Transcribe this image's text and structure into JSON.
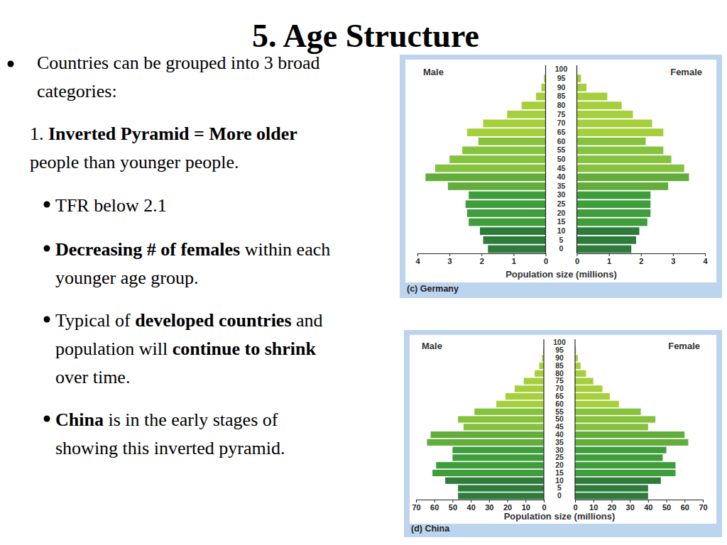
{
  "slide": {
    "title": "5. Age Structure",
    "intro": {
      "lines": [
        [
          {
            "text": "Countries can be grouped into 3 broad"
          }
        ],
        [
          {
            "text": "categories:"
          }
        ]
      ]
    },
    "category": {
      "lines": [
        [
          {
            "text": "1. "
          },
          {
            "text": "Inverted Pyramid = More older",
            "bold": true
          }
        ],
        [
          {
            "text": "people than younger people."
          }
        ]
      ]
    },
    "points": [
      {
        "lines": [
          [
            {
              "text": "TFR below 2.1"
            }
          ]
        ]
      },
      {
        "lines": [
          [
            {
              "text": "Decreasing # of females",
              "bold": true
            },
            {
              "text": " within each"
            }
          ],
          [
            {
              "text": "younger age group."
            }
          ]
        ]
      },
      {
        "lines": [
          [
            {
              "text": "Typical of "
            },
            {
              "text": "developed countries",
              "bold": true
            },
            {
              "text": " and"
            }
          ],
          [
            {
              "text": "population will "
            },
            {
              "text": "continue to shrink",
              "bold": true
            }
          ],
          [
            {
              "text": "over time."
            }
          ]
        ]
      },
      {
        "lines": [
          [
            {
              "text": "China",
              "bold": true
            },
            {
              "text": " is in the early stages of"
            }
          ],
          [
            {
              "text": "showing this inverted pyramid."
            }
          ]
        ]
      }
    ]
  },
  "chart_data": [
    {
      "type": "bar",
      "orientation": "horizontal",
      "title": "(c) Germany",
      "xlabel": "Population size (millions)",
      "categories": [
        "0",
        "5",
        "10",
        "15",
        "20",
        "25",
        "30",
        "35",
        "40",
        "45",
        "50",
        "55",
        "60",
        "65",
        "70",
        "75",
        "80",
        "85",
        "90",
        "95",
        "100"
      ],
      "xlim": [
        0,
        4
      ],
      "xticks": [
        0,
        1,
        2,
        3,
        4
      ],
      "series": [
        {
          "name": "Male",
          "values": [
            1.8,
            1.95,
            2.05,
            2.4,
            2.45,
            2.5,
            2.4,
            3.05,
            3.75,
            3.45,
            3.0,
            2.6,
            2.1,
            2.45,
            1.95,
            1.2,
            0.75,
            0.3,
            0.13,
            0.05,
            0
          ],
          "colors": [
            "#2e7b3b",
            "#2e7b3b",
            "#2e7b3b",
            "#3f9d3c",
            "#3f9d3c",
            "#3f9d3c",
            "#3f9d3c",
            "#62ad3c",
            "#62ad3c",
            "#86c23e",
            "#86c23e",
            "#86c23e",
            "#86c23e",
            "#a5cf3c",
            "#a5cf3c",
            "#a5cf3c",
            "#a5cf3c",
            "#a5cf3c",
            "#a5cf3c",
            "#a5cf3c",
            "#a5cf3c"
          ]
        },
        {
          "name": "Female",
          "values": [
            1.7,
            1.85,
            1.95,
            2.2,
            2.3,
            2.3,
            2.3,
            2.85,
            3.5,
            3.35,
            2.95,
            2.7,
            2.15,
            2.7,
            2.35,
            1.75,
            1.4,
            0.95,
            0.3,
            0.13,
            0
          ],
          "colors": [
            "#2e7b3b",
            "#2e7b3b",
            "#2e7b3b",
            "#3f9d3c",
            "#3f9d3c",
            "#3f9d3c",
            "#3f9d3c",
            "#62ad3c",
            "#62ad3c",
            "#86c23e",
            "#86c23e",
            "#86c23e",
            "#86c23e",
            "#a5cf3c",
            "#a5cf3c",
            "#a5cf3c",
            "#a5cf3c",
            "#a5cf3c",
            "#a5cf3c",
            "#a5cf3c",
            "#a5cf3c"
          ]
        }
      ]
    },
    {
      "type": "bar",
      "orientation": "horizontal",
      "title": "(d) China",
      "xlabel": "Population size (millions)",
      "categories": [
        "0",
        "5",
        "10",
        "15",
        "20",
        "25",
        "30",
        "35",
        "40",
        "45",
        "50",
        "55",
        "60",
        "65",
        "70",
        "75",
        "80",
        "85",
        "90",
        "95",
        "100"
      ],
      "xlim": [
        0,
        70
      ],
      "xticks": [
        0,
        10,
        20,
        30,
        40,
        50,
        60,
        70
      ],
      "series": [
        {
          "name": "Male",
          "values": [
            47,
            47,
            54,
            61,
            59,
            50,
            50,
            64,
            62,
            44,
            47,
            38,
            26,
            21,
            16,
            11,
            5,
            2.5,
            1,
            0.3,
            0
          ],
          "colors": [
            "#2e7b3b",
            "#2e7b3b",
            "#2e7b3b",
            "#3f9d3c",
            "#3f9d3c",
            "#3f9d3c",
            "#3f9d3c",
            "#62ad3c",
            "#62ad3c",
            "#86c23e",
            "#86c23e",
            "#86c23e",
            "#a5cf3c",
            "#a5cf3c",
            "#a5cf3c",
            "#a5cf3c",
            "#a5cf3c",
            "#a5cf3c",
            "#a5cf3c",
            "#a5cf3c",
            "#a5cf3c"
          ]
        },
        {
          "name": "Female",
          "values": [
            40,
            40,
            47,
            55,
            55,
            48,
            50,
            62,
            60,
            40,
            44,
            36,
            24,
            19,
            15,
            10,
            6,
            3,
            1.5,
            0.5,
            0
          ],
          "colors": [
            "#2e7b3b",
            "#2e7b3b",
            "#2e7b3b",
            "#3f9d3c",
            "#3f9d3c",
            "#3f9d3c",
            "#3f9d3c",
            "#62ad3c",
            "#62ad3c",
            "#86c23e",
            "#86c23e",
            "#86c23e",
            "#a5cf3c",
            "#a5cf3c",
            "#a5cf3c",
            "#a5cf3c",
            "#a5cf3c",
            "#a5cf3c",
            "#a5cf3c",
            "#a5cf3c",
            "#a5cf3c"
          ]
        }
      ]
    }
  ]
}
